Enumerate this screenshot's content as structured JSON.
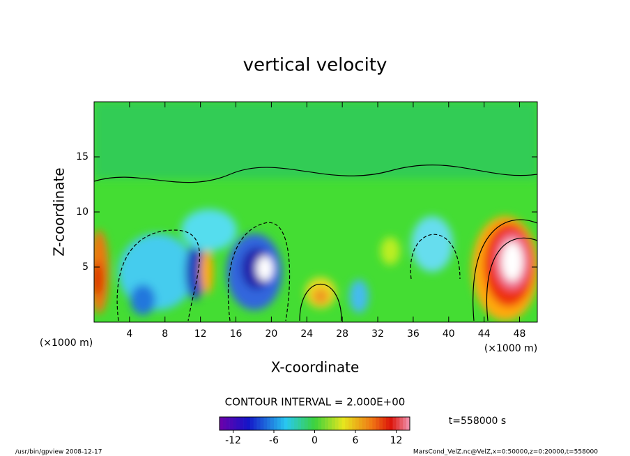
{
  "chart_data": {
    "type": "contour",
    "title": "vertical velocity",
    "xlabel": "X-coordinate",
    "ylabel": "Z-coordinate",
    "x_unit": "(×1000 m)",
    "xlim": [
      0,
      50
    ],
    "xticks": [
      4,
      8,
      12,
      16,
      20,
      24,
      28,
      32,
      36,
      40,
      44,
      48
    ],
    "ylim": [
      0,
      20
    ],
    "yticks": [
      5,
      10,
      15
    ],
    "contour_interval_label": "CONTOUR INTERVAL = 2.000E+00",
    "clim": [
      -14,
      14
    ],
    "cticks": [
      -12,
      -6,
      0,
      6,
      12
    ],
    "time_label": "t=558000 s",
    "footer_left": "/usr/bin/gpview   2008-12-17",
    "footer_right": "MarsCond_VelZ.nc@VelZ,x=0:50000,z=0:20000,t=558000"
  }
}
